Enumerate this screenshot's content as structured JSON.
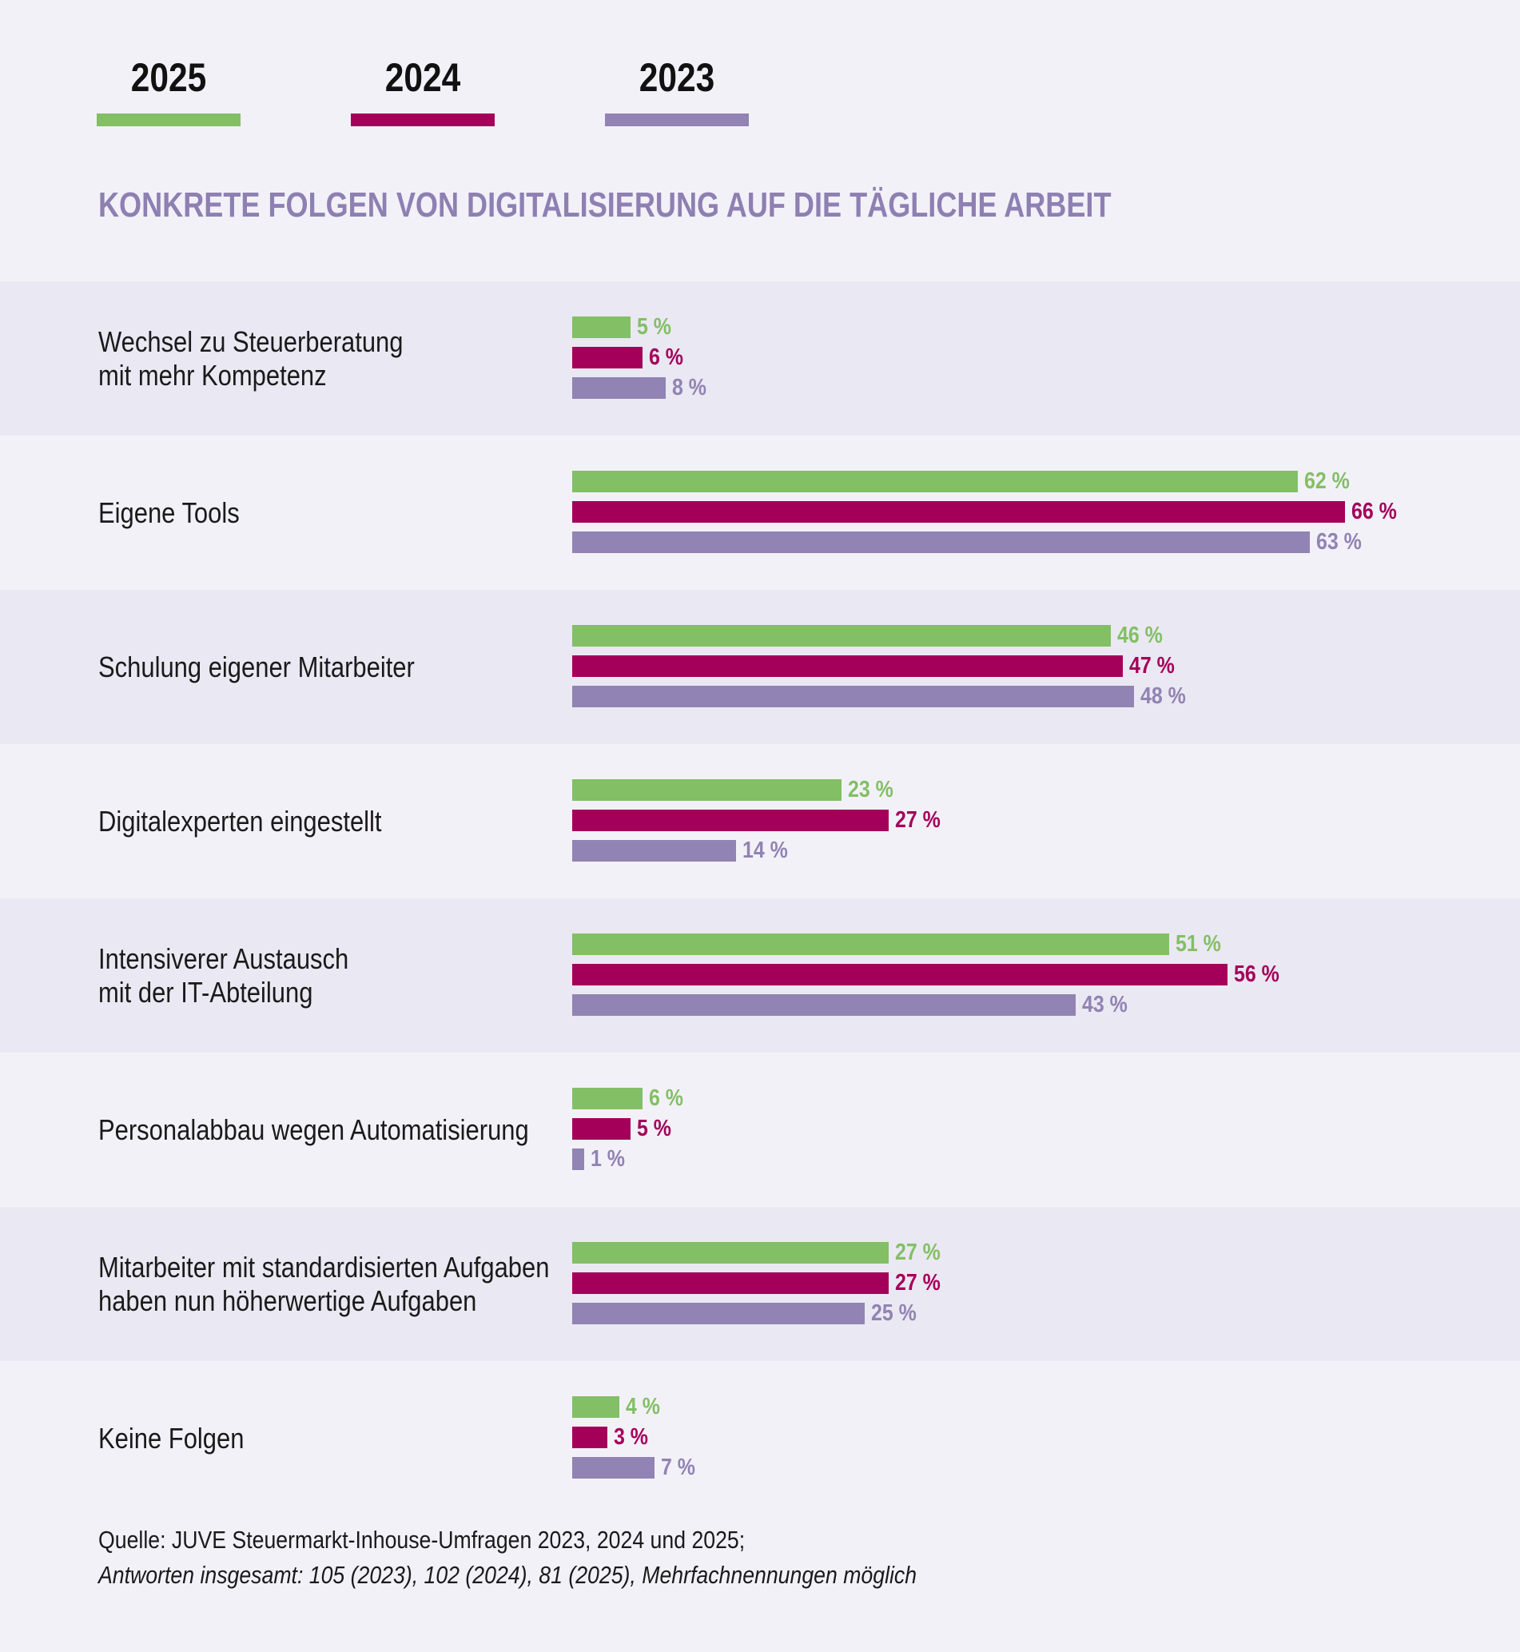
{
  "chart_data": {
    "type": "bar",
    "orientation": "horizontal",
    "title": "KONKRETE FOLGEN VON DIGITALISIERUNG AUF DIE TÄGLICHE ARBEIT",
    "categories": [
      "Wechsel zu Steuerberatung\nmit mehr Kompetenz",
      "Eigene Tools",
      "Schulung eigener Mitarbeiter",
      "Digitalexperten eingestellt",
      "Intensiverer Austausch\nmit der IT-Abteilung",
      "Personalabbau wegen Automatisierung",
      "Mitarbeiter mit standardisierten Aufgaben\nhaben nun höherwertige Aufgaben",
      "Keine Folgen"
    ],
    "series": [
      {
        "name": "2025",
        "color": "#82bf65",
        "values": [
          5,
          62,
          46,
          23,
          51,
          6,
          27,
          4
        ]
      },
      {
        "name": "2024",
        "color": "#a4005a",
        "values": [
          6,
          66,
          47,
          27,
          56,
          5,
          27,
          3
        ]
      },
      {
        "name": "2023",
        "color": "#9183b3",
        "values": [
          8,
          63,
          48,
          14,
          43,
          1,
          25,
          7
        ]
      }
    ],
    "unit": "%",
    "legend_position": "top-left",
    "grid": false
  },
  "source": {
    "line1": "Quelle: JUVE Steuermarkt-Inhouse-Umfragen 2023, 2024 und 2025;",
    "line2": "Antworten insgesamt: 105 (2023), 102 (2024), 81 (2025), Mehrfachnennungen möglich"
  }
}
